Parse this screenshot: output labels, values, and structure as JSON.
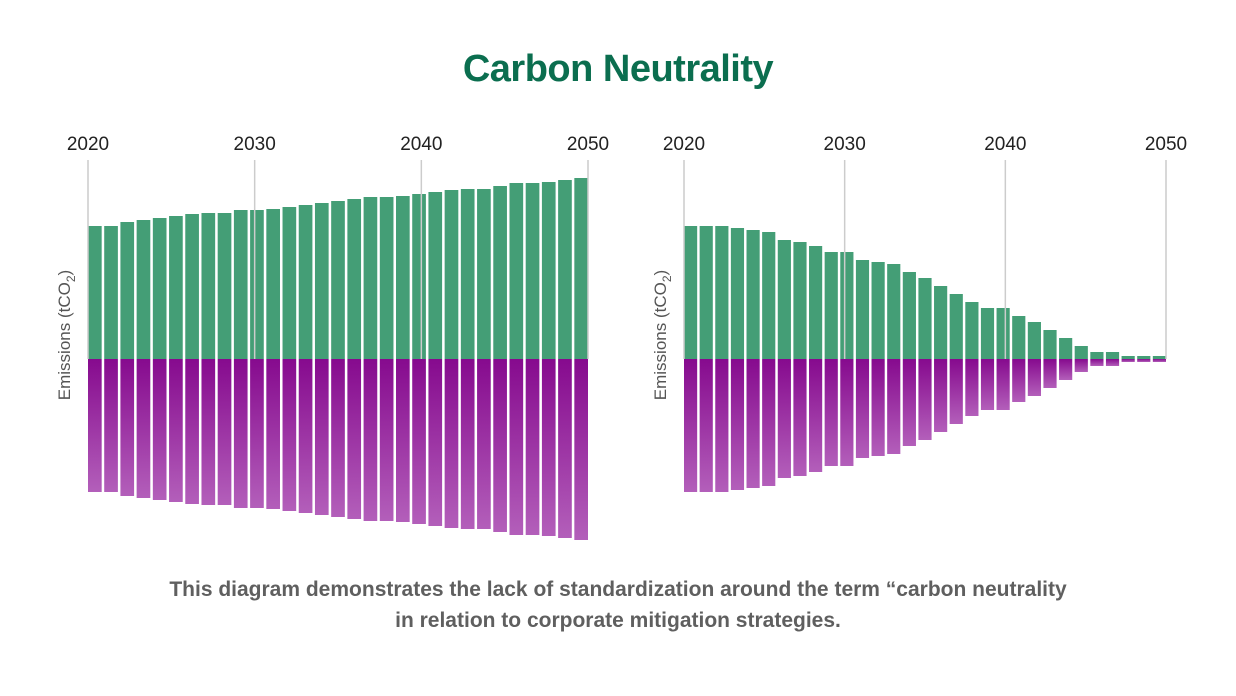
{
  "title": "Carbon Neutrality",
  "caption": {
    "line1": "This diagram demonstrates the lack of standardization around the term “carbon neutrality",
    "line2": "in relation to corporate mitigation strategies."
  },
  "colors": {
    "title": "#0b6e4f",
    "emissions_bar": "#449e76",
    "offset_top": "#860a8e",
    "offset_bottom": "#b35fba",
    "gridline": "#cccccc",
    "caption": "#5f5f5f",
    "axis_text": "#222222",
    "ylabel_text": "#555555"
  },
  "chart_data": [
    {
      "type": "bar",
      "name": "left-chart",
      "ylabel": "Emissions (tCO",
      "ylabel_sub": "2",
      "ylabel_end": ")",
      "tick_labels": [
        "2020",
        "2030",
        "2040",
        "2050"
      ],
      "tick_years": [
        2020,
        2030,
        2040,
        2050
      ],
      "xlim": [
        2020,
        2050
      ],
      "ylim": [
        -190,
        190
      ],
      "grid": true,
      "series": [
        {
          "name": "emissions",
          "x": [
            2020,
            2021,
            2022,
            2023,
            2024,
            2025,
            2026,
            2027,
            2028,
            2029,
            2030,
            2031,
            2032,
            2033,
            2034,
            2035,
            2036,
            2037,
            2038,
            2039,
            2040,
            2041,
            2042,
            2043,
            2044,
            2045,
            2046,
            2047,
            2048,
            2049,
            2050
          ],
          "values": [
            133,
            133,
            137,
            139,
            141,
            143,
            145,
            146,
            146,
            149,
            149,
            150,
            152,
            154,
            156,
            158,
            160,
            162,
            162,
            163,
            165,
            167,
            169,
            170,
            170,
            173,
            176,
            176,
            177,
            179,
            181
          ]
        },
        {
          "name": "offsets",
          "x": [
            2020,
            2021,
            2022,
            2023,
            2024,
            2025,
            2026,
            2027,
            2028,
            2029,
            2030,
            2031,
            2032,
            2033,
            2034,
            2035,
            2036,
            2037,
            2038,
            2039,
            2040,
            2041,
            2042,
            2043,
            2044,
            2045,
            2046,
            2047,
            2048,
            2049,
            2050
          ],
          "values": [
            -133,
            -133,
            -137,
            -139,
            -141,
            -143,
            -145,
            -146,
            -146,
            -149,
            -149,
            -150,
            -152,
            -154,
            -156,
            -158,
            -160,
            -162,
            -162,
            -163,
            -165,
            -167,
            -169,
            -170,
            -170,
            -173,
            -176,
            -176,
            -177,
            -179,
            -181
          ]
        }
      ]
    },
    {
      "type": "bar",
      "name": "right-chart",
      "ylabel": "Emissions (tCO",
      "ylabel_sub": "2",
      "ylabel_end": ")",
      "tick_labels": [
        "2020",
        "2030",
        "2040",
        "2050"
      ],
      "tick_years": [
        2020,
        2030,
        2040,
        2050
      ],
      "xlim": [
        2020,
        2050
      ],
      "ylim": [
        -190,
        190
      ],
      "grid": true,
      "series": [
        {
          "name": "emissions",
          "x": [
            2020,
            2021,
            2022,
            2023,
            2024,
            2025,
            2026,
            2027,
            2028,
            2029,
            2030,
            2031,
            2032,
            2033,
            2034,
            2035,
            2036,
            2037,
            2038,
            2039,
            2040,
            2041,
            2042,
            2043,
            2044,
            2045,
            2046,
            2047,
            2048,
            2049,
            2050
          ],
          "values": [
            133,
            133,
            133,
            131,
            129,
            127,
            119,
            117,
            113,
            107,
            107,
            99,
            97,
            95,
            87,
            81,
            73,
            65,
            57,
            51,
            51,
            43,
            37,
            29,
            21,
            13,
            7,
            7,
            3,
            3,
            3
          ]
        },
        {
          "name": "offsets",
          "x": [
            2020,
            2021,
            2022,
            2023,
            2024,
            2025,
            2026,
            2027,
            2028,
            2029,
            2030,
            2031,
            2032,
            2033,
            2034,
            2035,
            2036,
            2037,
            2038,
            2039,
            2040,
            2041,
            2042,
            2043,
            2044,
            2045,
            2046,
            2047,
            2048,
            2049,
            2050
          ],
          "values": [
            -133,
            -133,
            -133,
            -131,
            -129,
            -127,
            -119,
            -117,
            -113,
            -107,
            -107,
            -99,
            -97,
            -95,
            -87,
            -81,
            -73,
            -65,
            -57,
            -51,
            -51,
            -43,
            -37,
            -29,
            -21,
            -13,
            -7,
            -7,
            -3,
            -3,
            -3
          ]
        }
      ]
    }
  ]
}
